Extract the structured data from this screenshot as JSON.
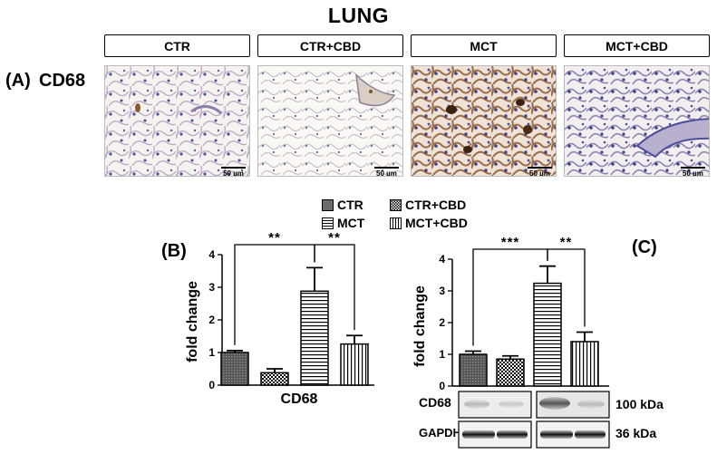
{
  "figure": {
    "title": "LUNG",
    "panel_a_label": "(A)",
    "panel_a_stain": "CD68",
    "panel_b_label": "(B)",
    "panel_c_label": "(C)"
  },
  "groups": [
    "CTR",
    "CTR+CBD",
    "MCT",
    "MCT+CBD"
  ],
  "micrographs": [
    {
      "group": "CTR",
      "scale_bar": "50 µm"
    },
    {
      "group": "CTR+CBD",
      "scale_bar": "50 µm"
    },
    {
      "group": "MCT",
      "scale_bar": "50 µm"
    },
    {
      "group": "MCT+CBD",
      "scale_bar": "50 µm"
    }
  ],
  "legend": [
    {
      "label": "CTR",
      "pattern": "dark"
    },
    {
      "label": "CTR+CBD",
      "pattern": "check"
    },
    {
      "label": "MCT",
      "pattern": "hstripe"
    },
    {
      "label": "MCT+CBD",
      "pattern": "vstripe"
    }
  ],
  "chart_data": [
    {
      "type": "bar",
      "panel": "B",
      "categories": [
        "CTR",
        "CTR+CBD",
        "MCT",
        "MCT+CBD"
      ],
      "values": [
        1.0,
        0.38,
        2.88,
        1.26
      ],
      "errors": [
        0.06,
        0.12,
        0.72,
        0.26
      ],
      "ylabel": "fold change",
      "xlabel": "CD68",
      "ylim": [
        0,
        4
      ],
      "yticks": [
        "0",
        "1",
        "2",
        "3",
        "4"
      ],
      "significance": [
        {
          "from": "CTR",
          "to": "MCT",
          "label": "**"
        },
        {
          "from": "MCT",
          "to": "MCT+CBD",
          "label": "**"
        }
      ]
    },
    {
      "type": "bar",
      "panel": "C",
      "categories": [
        "CTR",
        "CTR+CBD",
        "MCT",
        "MCT+CBD"
      ],
      "values": [
        1.0,
        0.85,
        3.24,
        1.4
      ],
      "errors": [
        0.1,
        0.1,
        0.54,
        0.3
      ],
      "ylabel": "fold change",
      "xlabel": "",
      "ylim": [
        0,
        4
      ],
      "yticks": [
        "0",
        "1",
        "2",
        "3",
        "4"
      ],
      "significance": [
        {
          "from": "CTR",
          "to": "MCT",
          "label": "***"
        },
        {
          "from": "MCT",
          "to": "MCT+CBD",
          "label": "**"
        }
      ]
    }
  ],
  "blot": {
    "rows": [
      {
        "protein": "CD68",
        "size": "100 kDa"
      },
      {
        "protein": "GAPDH",
        "size": "36 kDa"
      }
    ]
  }
}
